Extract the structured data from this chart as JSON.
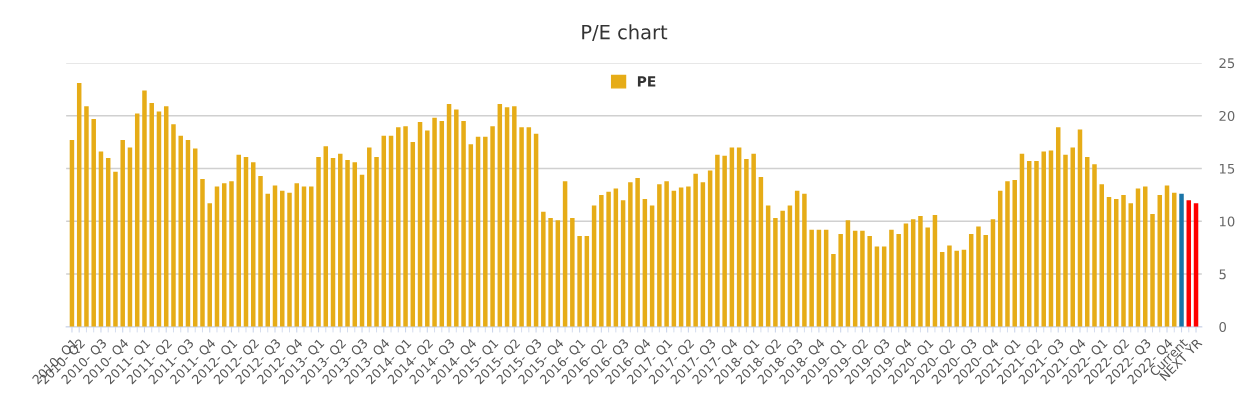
{
  "chart_data": {
    "type": "bar",
    "title": "P/E chart",
    "categories": [
      "2010- Q1",
      "2010- Q2",
      null,
      null,
      "2010- Q3",
      null,
      null,
      "2010- Q4",
      null,
      null,
      "2011- Q1",
      null,
      null,
      "2011- Q2",
      null,
      null,
      "2011- Q3",
      null,
      null,
      "2011- Q4",
      null,
      null,
      "2012- Q1",
      null,
      null,
      "2012- Q2",
      null,
      null,
      "2012- Q3",
      null,
      null,
      "2012- Q4",
      null,
      null,
      "2013- Q1",
      null,
      null,
      "2013- Q2",
      null,
      null,
      "2013- Q3",
      null,
      null,
      "2013- Q4",
      null,
      null,
      "2014- Q1",
      null,
      null,
      "2014- Q2",
      null,
      null,
      "2014- Q3",
      null,
      null,
      "2014- Q4",
      null,
      null,
      "2015- Q1",
      null,
      null,
      "2015- Q2",
      null,
      null,
      "2015- Q3",
      null,
      null,
      "2015- Q4",
      null,
      null,
      "2016- Q1",
      null,
      null,
      "2016- Q2",
      null,
      null,
      "2016- Q3",
      null,
      null,
      "2016- Q4",
      null,
      null,
      "2017- Q1",
      null,
      null,
      "2017- Q2",
      null,
      null,
      "2017- Q3",
      null,
      null,
      "2017- Q4",
      null,
      null,
      "2018- Q1",
      null,
      null,
      "2018- Q2",
      null,
      null,
      "2018- Q3",
      null,
      null,
      "2018- Q4",
      null,
      null,
      "2019- Q1",
      null,
      null,
      "2019- Q2",
      null,
      null,
      "2019- Q3",
      null,
      null,
      "2019- Q4",
      null,
      null,
      "2020- Q1",
      null,
      null,
      "2020- Q2",
      null,
      null,
      "2020- Q3",
      null,
      null,
      "2020- Q4",
      null,
      null,
      "2021- Q1",
      null,
      null,
      "2021- Q2",
      null,
      null,
      "2021- Q3",
      null,
      null,
      "2021- Q4",
      null,
      null,
      "2022- Q1",
      null,
      null,
      "2022- Q2",
      null,
      null,
      "2022- Q3",
      null,
      null,
      "2022- Q4",
      null,
      "Current",
      null,
      "NEXT YR"
    ],
    "series": [
      {
        "name": "PE",
        "color": "#e6ac17",
        "values": [
          17.7,
          23.1,
          20.9,
          19.7,
          16.6,
          16.0,
          14.7,
          17.7,
          17.0,
          20.2,
          22.4,
          21.2,
          20.4,
          20.9,
          19.2,
          18.1,
          17.7,
          16.9,
          14.0,
          11.7,
          13.3,
          13.6,
          13.8,
          16.3,
          16.1,
          15.6,
          14.3,
          12.6,
          13.4,
          12.9,
          12.7,
          13.6,
          13.3,
          13.3,
          16.1,
          17.1,
          16.0,
          16.4,
          15.8,
          15.6,
          14.4,
          17.0,
          16.1,
          18.1,
          18.1,
          18.9,
          19.0,
          17.5,
          19.4,
          18.6,
          19.8,
          19.5,
          21.1,
          20.6,
          19.5,
          17.3,
          18.0,
          18.0,
          19.0,
          21.1,
          20.8,
          20.9,
          18.9,
          18.9,
          18.3,
          10.9,
          10.3,
          10.1,
          13.8,
          10.3,
          8.6,
          8.6,
          11.5,
          12.5,
          12.8,
          13.1,
          12.0,
          13.7,
          14.1,
          12.1,
          11.5,
          13.5,
          13.8,
          12.9,
          13.2,
          13.3,
          14.5,
          13.7,
          14.8,
          16.3,
          16.2,
          17.0,
          17.0,
          15.9,
          16.4,
          14.2,
          11.5,
          10.3,
          11.0,
          11.5,
          12.9,
          12.6,
          9.2,
          9.2,
          9.2,
          6.9,
          8.8,
          10.1,
          9.1,
          9.1,
          8.6,
          7.6,
          7.6,
          9.2,
          8.8,
          9.8,
          10.2,
          10.5,
          9.4,
          10.6,
          7.1,
          7.7,
          7.2,
          7.3,
          8.8,
          9.5,
          8.7,
          10.2,
          12.9,
          13.8,
          13.9,
          16.4,
          15.7,
          15.7,
          16.6,
          16.7,
          18.9,
          16.3,
          17.0,
          18.7,
          16.1,
          15.4,
          13.5,
          12.3,
          12.1,
          12.5,
          11.7,
          13.1,
          13.3,
          10.7,
          12.5,
          13.4,
          12.7,
          12.6,
          12.0,
          11.7
        ],
        "colors": [
          "#e6ac17",
          "#e6ac17",
          "#e6ac17",
          "#e6ac17",
          "#e6ac17",
          "#e6ac17",
          "#e6ac17",
          "#e6ac17",
          "#e6ac17",
          "#e6ac17",
          "#e6ac17",
          "#e6ac17",
          "#e6ac17",
          "#e6ac17",
          "#e6ac17",
          "#e6ac17",
          "#e6ac17",
          "#e6ac17",
          "#e6ac17",
          "#e6ac17",
          "#e6ac17",
          "#e6ac17",
          "#e6ac17",
          "#e6ac17",
          "#e6ac17",
          "#e6ac17",
          "#e6ac17",
          "#e6ac17",
          "#e6ac17",
          "#e6ac17",
          "#e6ac17",
          "#e6ac17",
          "#e6ac17",
          "#e6ac17",
          "#e6ac17",
          "#e6ac17",
          "#e6ac17",
          "#e6ac17",
          "#e6ac17",
          "#e6ac17",
          "#e6ac17",
          "#e6ac17",
          "#e6ac17",
          "#e6ac17",
          "#e6ac17",
          "#e6ac17",
          "#e6ac17",
          "#e6ac17",
          "#e6ac17",
          "#e6ac17",
          "#e6ac17",
          "#e6ac17",
          "#e6ac17",
          "#e6ac17",
          "#e6ac17",
          "#e6ac17",
          "#e6ac17",
          "#e6ac17",
          "#e6ac17",
          "#e6ac17",
          "#e6ac17",
          "#e6ac17",
          "#e6ac17",
          "#e6ac17",
          "#e6ac17",
          "#e6ac17",
          "#e6ac17",
          "#e6ac17",
          "#e6ac17",
          "#e6ac17",
          "#e6ac17",
          "#e6ac17",
          "#e6ac17",
          "#e6ac17",
          "#e6ac17",
          "#e6ac17",
          "#e6ac17",
          "#e6ac17",
          "#e6ac17",
          "#e6ac17",
          "#e6ac17",
          "#e6ac17",
          "#e6ac17",
          "#e6ac17",
          "#e6ac17",
          "#e6ac17",
          "#e6ac17",
          "#e6ac17",
          "#e6ac17",
          "#e6ac17",
          "#e6ac17",
          "#e6ac17",
          "#e6ac17",
          "#e6ac17",
          "#e6ac17",
          "#e6ac17",
          "#e6ac17",
          "#e6ac17",
          "#e6ac17",
          "#e6ac17",
          "#e6ac17",
          "#e6ac17",
          "#e6ac17",
          "#e6ac17",
          "#e6ac17",
          "#e6ac17",
          "#e6ac17",
          "#e6ac17",
          "#e6ac17",
          "#e6ac17",
          "#e6ac17",
          "#e6ac17",
          "#e6ac17",
          "#e6ac17",
          "#e6ac17",
          "#e6ac17",
          "#e6ac17",
          "#e6ac17",
          "#e6ac17",
          "#e6ac17",
          "#e6ac17",
          "#e6ac17",
          "#e6ac17",
          "#e6ac17",
          "#e6ac17",
          "#e6ac17",
          "#e6ac17",
          "#e6ac17",
          "#e6ac17",
          "#e6ac17",
          "#e6ac17",
          "#e6ac17",
          "#e6ac17",
          "#e6ac17",
          "#e6ac17",
          "#e6ac17",
          "#e6ac17",
          "#e6ac17",
          "#e6ac17",
          "#e6ac17",
          "#e6ac17",
          "#e6ac17",
          "#e6ac17",
          "#e6ac17",
          "#e6ac17",
          "#e6ac17",
          "#e6ac17",
          "#e6ac17",
          "#e6ac17",
          "#e6ac17",
          "#e6ac17",
          "#e6ac17",
          "#e6ac17",
          "#1b75a8",
          "#ff0000",
          "#ff0000"
        ]
      }
    ],
    "ylim": [
      0,
      25
    ],
    "yticks": [
      0,
      5,
      10,
      15,
      20,
      25
    ],
    "grid": "y",
    "legend": "top"
  }
}
